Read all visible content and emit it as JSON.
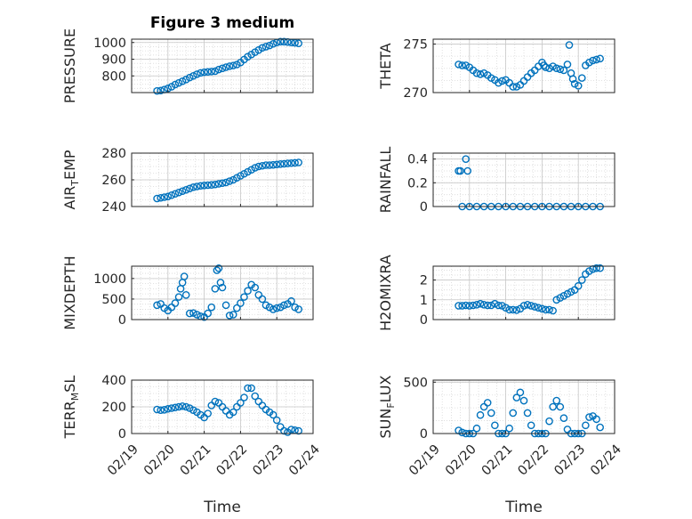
{
  "colors": {
    "marker": "#0072BD",
    "axis": "#262626",
    "grid": "#d9d9d9",
    "background": "#ffffff"
  },
  "chart_data": [
    {
      "type": "scatter",
      "title": "Figure 3 medium",
      "ylabel": "PRESSURE",
      "ylim": [
        700,
        1020
      ],
      "yticks": [
        800,
        900,
        1000
      ],
      "x_tick_labels_shown": false,
      "x_dates": [
        "02/19",
        "02/20",
        "02/21",
        "02/22",
        "02/23",
        "02/24"
      ],
      "grid": true,
      "series": [
        {
          "x": [
            0.7,
            0.8,
            0.9,
            1.0,
            1.1,
            1.2,
            1.3,
            1.4,
            1.5,
            1.6,
            1.7,
            1.8,
            1.9,
            2.0,
            2.1,
            2.2,
            2.3,
            2.4,
            2.5,
            2.6,
            2.7,
            2.8,
            2.9,
            3.0,
            3.1,
            3.2,
            3.3,
            3.4,
            3.5,
            3.6,
            3.7,
            3.8,
            3.9,
            4.0,
            4.1,
            4.2,
            4.3,
            4.4,
            4.5,
            4.6
          ],
          "y": [
            710,
            712,
            718,
            725,
            735,
            748,
            758,
            768,
            778,
            790,
            800,
            810,
            818,
            822,
            824,
            826,
            828,
            838,
            845,
            852,
            858,
            862,
            868,
            880,
            898,
            915,
            928,
            942,
            955,
            968,
            975,
            982,
            992,
            1000,
            1005,
            1005,
            1003,
            1000,
            998,
            995
          ]
        }
      ]
    },
    {
      "type": "scatter",
      "ylabel": "THETA",
      "ylim": [
        270,
        275.5
      ],
      "yticks": [
        270,
        275
      ],
      "x_tick_labels_shown": false,
      "grid": true,
      "series": [
        {
          "x": [
            0.7,
            0.8,
            0.9,
            1.0,
            1.1,
            1.2,
            1.3,
            1.4,
            1.5,
            1.6,
            1.7,
            1.8,
            1.9,
            2.0,
            2.1,
            2.2,
            2.3,
            2.4,
            2.5,
            2.6,
            2.7,
            2.8,
            2.9,
            3.0,
            3.05,
            3.1,
            3.2,
            3.3,
            3.4,
            3.5,
            3.6,
            3.7,
            3.75,
            3.8,
            3.85,
            3.9,
            4.0,
            4.1,
            4.2,
            4.3,
            4.4,
            4.5,
            4.6
          ],
          "y": [
            272.9,
            272.8,
            272.8,
            272.6,
            272.3,
            272.0,
            271.9,
            272.0,
            271.8,
            271.5,
            271.3,
            271.0,
            271.2,
            271.3,
            271.0,
            270.6,
            270.6,
            270.8,
            271.2,
            271.6,
            272.0,
            272.3,
            272.7,
            273.1,
            272.8,
            272.6,
            272.5,
            272.7,
            272.5,
            272.4,
            272.3,
            272.9,
            274.9,
            272.0,
            271.4,
            270.9,
            270.7,
            271.5,
            272.8,
            273.1,
            273.3,
            273.4,
            273.5
          ]
        }
      ]
    },
    {
      "type": "scatter",
      "ylabel": "AIR_TEMP",
      "ylim": [
        240,
        280
      ],
      "yticks": [
        240,
        260,
        280
      ],
      "x_tick_labels_shown": false,
      "grid": true,
      "series": [
        {
          "x": [
            0.7,
            0.8,
            0.9,
            1.0,
            1.1,
            1.2,
            1.3,
            1.4,
            1.5,
            1.6,
            1.7,
            1.8,
            1.9,
            2.0,
            2.1,
            2.2,
            2.3,
            2.4,
            2.5,
            2.6,
            2.7,
            2.8,
            2.9,
            3.0,
            3.1,
            3.2,
            3.3,
            3.4,
            3.5,
            3.6,
            3.7,
            3.8,
            3.9,
            4.0,
            4.1,
            4.2,
            4.3,
            4.4,
            4.5,
            4.6
          ],
          "y": [
            246,
            246.5,
            247,
            247.5,
            248.5,
            249.5,
            250.5,
            251.5,
            252.5,
            253.5,
            254.5,
            255,
            255.5,
            255.8,
            256,
            256.2,
            256.5,
            257,
            257.5,
            258,
            259,
            260,
            261.5,
            263,
            264.5,
            266,
            267.5,
            269,
            270,
            270.5,
            271,
            271,
            271.2,
            271.5,
            271.8,
            272,
            272.3,
            272.5,
            272.7,
            273
          ]
        }
      ]
    },
    {
      "type": "scatter",
      "ylabel": "RAINFALL",
      "ylim": [
        0,
        0.45
      ],
      "yticks": [
        0,
        0.2,
        0.4
      ],
      "x_tick_labels_shown": false,
      "grid": true,
      "series": [
        {
          "x": [
            0.7,
            0.75,
            0.8,
            0.9,
            0.95,
            1.0,
            1.2,
            1.4,
            1.6,
            1.8,
            2.0,
            2.2,
            2.4,
            2.6,
            2.8,
            3.0,
            3.2,
            3.4,
            3.6,
            3.8,
            4.0,
            4.2,
            4.4,
            4.6
          ],
          "y": [
            0.3,
            0.3,
            0.0,
            0.4,
            0.3,
            0,
            0,
            0,
            0,
            0,
            0,
            0,
            0,
            0,
            0,
            0,
            0,
            0,
            0,
            0,
            0,
            0,
            0,
            0
          ]
        }
      ]
    },
    {
      "type": "scatter",
      "ylabel": "MIXDEPTH",
      "ylim": [
        0,
        1300
      ],
      "yticks": [
        0,
        500,
        1000
      ],
      "x_tick_labels_shown": false,
      "grid": true,
      "series": [
        {
          "x": [
            0.7,
            0.8,
            0.9,
            1.0,
            1.1,
            1.2,
            1.3,
            1.35,
            1.4,
            1.45,
            1.5,
            1.6,
            1.7,
            1.8,
            1.9,
            2.0,
            2.1,
            2.2,
            2.3,
            2.35,
            2.4,
            2.45,
            2.5,
            2.6,
            2.7,
            2.8,
            2.9,
            3.0,
            3.1,
            3.2,
            3.3,
            3.4,
            3.5,
            3.6,
            3.7,
            3.8,
            3.9,
            4.0,
            4.1,
            4.2,
            4.3,
            4.4,
            4.5,
            4.6
          ],
          "y": [
            350,
            380,
            280,
            220,
            300,
            400,
            550,
            750,
            900,
            1050,
            600,
            150,
            160,
            120,
            80,
            60,
            150,
            300,
            750,
            1200,
            1250,
            900,
            780,
            350,
            100,
            120,
            280,
            400,
            550,
            700,
            850,
            780,
            600,
            500,
            350,
            300,
            250,
            280,
            300,
            350,
            380,
            450,
            300,
            250
          ]
        }
      ]
    },
    {
      "type": "scatter",
      "ylabel": "H2OMIXRA",
      "ylim": [
        0,
        2.7
      ],
      "yticks": [
        0,
        1,
        2
      ],
      "x_tick_labels_shown": false,
      "grid": true,
      "series": [
        {
          "x": [
            0.7,
            0.8,
            0.9,
            1.0,
            1.1,
            1.2,
            1.3,
            1.4,
            1.5,
            1.6,
            1.7,
            1.8,
            1.9,
            2.0,
            2.1,
            2.2,
            2.3,
            2.4,
            2.5,
            2.6,
            2.7,
            2.8,
            2.9,
            3.0,
            3.1,
            3.2,
            3.3,
            3.4,
            3.5,
            3.6,
            3.7,
            3.8,
            3.9,
            4.0,
            4.1,
            4.2,
            4.3,
            4.4,
            4.5,
            4.6
          ],
          "y": [
            0.7,
            0.7,
            0.72,
            0.7,
            0.72,
            0.75,
            0.8,
            0.75,
            0.72,
            0.72,
            0.8,
            0.72,
            0.7,
            0.6,
            0.5,
            0.5,
            0.48,
            0.55,
            0.7,
            0.75,
            0.7,
            0.65,
            0.6,
            0.55,
            0.5,
            0.5,
            0.45,
            1.0,
            1.1,
            1.2,
            1.3,
            1.4,
            1.5,
            1.7,
            2.0,
            2.3,
            2.45,
            2.55,
            2.6,
            2.6
          ]
        }
      ]
    },
    {
      "type": "scatter",
      "ylabel": "TERR_MSL",
      "ylim": [
        0,
        400
      ],
      "yticks": [
        0,
        200,
        400
      ],
      "x_tick_labels": [
        "02/19",
        "02/20",
        "02/21",
        "02/22",
        "02/23",
        "02/24"
      ],
      "xlabel": "Time",
      "grid": true,
      "series": [
        {
          "x": [
            0.7,
            0.8,
            0.9,
            1.0,
            1.1,
            1.2,
            1.3,
            1.4,
            1.5,
            1.6,
            1.7,
            1.8,
            1.9,
            2.0,
            2.1,
            2.2,
            2.3,
            2.4,
            2.5,
            2.6,
            2.7,
            2.8,
            2.9,
            3.0,
            3.1,
            3.2,
            3.3,
            3.4,
            3.5,
            3.6,
            3.7,
            3.8,
            3.9,
            4.0,
            4.1,
            4.2,
            4.3,
            4.4,
            4.5,
            4.6
          ],
          "y": [
            180,
            175,
            178,
            185,
            190,
            195,
            200,
            205,
            200,
            190,
            175,
            160,
            140,
            120,
            150,
            210,
            240,
            230,
            200,
            170,
            140,
            160,
            200,
            230,
            270,
            340,
            340,
            280,
            240,
            210,
            180,
            160,
            140,
            100,
            50,
            20,
            10,
            30,
            25,
            20
          ]
        }
      ]
    },
    {
      "type": "scatter",
      "ylabel": "SUN_FLUX",
      "ylim": [
        0,
        520
      ],
      "yticks": [
        0,
        500
      ],
      "x_tick_labels": [
        "02/19",
        "02/20",
        "02/21",
        "02/22",
        "02/23",
        "02/24"
      ],
      "xlabel": "Time",
      "grid": true,
      "series": [
        {
          "x": [
            0.7,
            0.8,
            0.9,
            1.0,
            1.1,
            1.2,
            1.3,
            1.4,
            1.5,
            1.6,
            1.7,
            1.8,
            1.9,
            2.0,
            2.1,
            2.2,
            2.3,
            2.4,
            2.5,
            2.6,
            2.7,
            2.8,
            2.9,
            3.0,
            3.1,
            3.2,
            3.3,
            3.4,
            3.5,
            3.6,
            3.7,
            3.8,
            3.9,
            4.0,
            4.1,
            4.2,
            4.3,
            4.4,
            4.5,
            4.6
          ],
          "y": [
            30,
            10,
            0,
            0,
            0,
            50,
            180,
            260,
            300,
            200,
            80,
            0,
            0,
            0,
            50,
            200,
            350,
            400,
            320,
            200,
            80,
            0,
            0,
            0,
            0,
            120,
            260,
            320,
            260,
            150,
            40,
            0,
            0,
            0,
            0,
            80,
            160,
            170,
            140,
            60
          ]
        }
      ]
    }
  ]
}
